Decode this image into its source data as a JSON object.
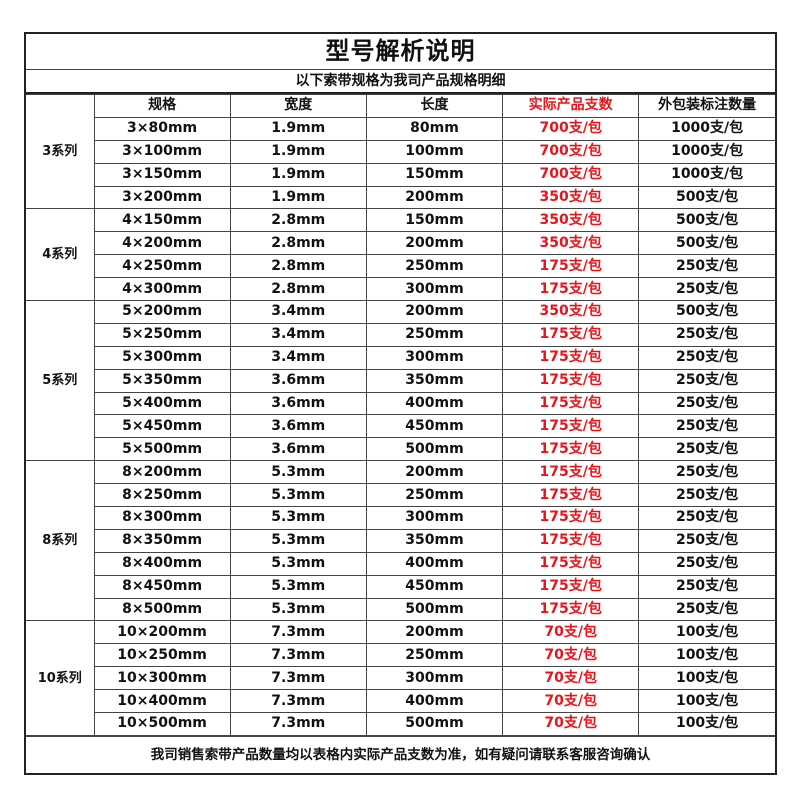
{
  "title": "型号解析说明",
  "subtitle": "以下索带规格为我司产品规格明细",
  "headers": [
    "规格",
    "宽度",
    "长度",
    "实际产品支数",
    "外包装标注数量"
  ],
  "colors": {
    "highlight": "#e8141b",
    "text": "#111111"
  },
  "groups": [
    {
      "series": "3系列",
      "rows": [
        [
          "3×80mm",
          "1.9mm",
          "80mm",
          "700支/包",
          "1000支/包"
        ],
        [
          "3×100mm",
          "1.9mm",
          "100mm",
          "700支/包",
          "1000支/包"
        ],
        [
          "3×150mm",
          "1.9mm",
          "150mm",
          "700支/包",
          "1000支/包"
        ],
        [
          "3×200mm",
          "1.9mm",
          "200mm",
          "350支/包",
          "500支/包"
        ]
      ]
    },
    {
      "series": "4系列",
      "rows": [
        [
          "4×150mm",
          "2.8mm",
          "150mm",
          "350支/包",
          "500支/包"
        ],
        [
          "4×200mm",
          "2.8mm",
          "200mm",
          "350支/包",
          "500支/包"
        ],
        [
          "4×250mm",
          "2.8mm",
          "250mm",
          "175支/包",
          "250支/包"
        ],
        [
          "4×300mm",
          "2.8mm",
          "300mm",
          "175支/包",
          "250支/包"
        ]
      ]
    },
    {
      "series": "5系列",
      "rows": [
        [
          "5×200mm",
          "3.4mm",
          "200mm",
          "350支/包",
          "500支/包"
        ],
        [
          "5×250mm",
          "3.4mm",
          "250mm",
          "175支/包",
          "250支/包"
        ],
        [
          "5×300mm",
          "3.4mm",
          "300mm",
          "175支/包",
          "250支/包"
        ],
        [
          "5×350mm",
          "3.6mm",
          "350mm",
          "175支/包",
          "250支/包"
        ],
        [
          "5×400mm",
          "3.6mm",
          "400mm",
          "175支/包",
          "250支/包"
        ],
        [
          "5×450mm",
          "3.6mm",
          "450mm",
          "175支/包",
          "250支/包"
        ],
        [
          "5×500mm",
          "3.6mm",
          "500mm",
          "175支/包",
          "250支/包"
        ]
      ]
    },
    {
      "series": "8系列",
      "rows": [
        [
          "8×200mm",
          "5.3mm",
          "200mm",
          "175支/包",
          "250支/包"
        ],
        [
          "8×250mm",
          "5.3mm",
          "250mm",
          "175支/包",
          "250支/包"
        ],
        [
          "8×300mm",
          "5.3mm",
          "300mm",
          "175支/包",
          "250支/包"
        ],
        [
          "8×350mm",
          "5.3mm",
          "350mm",
          "175支/包",
          "250支/包"
        ],
        [
          "8×400mm",
          "5.3mm",
          "400mm",
          "175支/包",
          "250支/包"
        ],
        [
          "8×450mm",
          "5.3mm",
          "450mm",
          "175支/包",
          "250支/包"
        ],
        [
          "8×500mm",
          "5.3mm",
          "500mm",
          "175支/包",
          "250支/包"
        ]
      ]
    },
    {
      "series": "10系列",
      "rows": [
        [
          "10×200mm",
          "7.3mm",
          "200mm",
          "70支/包",
          "100支/包"
        ],
        [
          "10×250mm",
          "7.3mm",
          "250mm",
          "70支/包",
          "100支/包"
        ],
        [
          "10×300mm",
          "7.3mm",
          "300mm",
          "70支/包",
          "100支/包"
        ],
        [
          "10×400mm",
          "7.3mm",
          "400mm",
          "70支/包",
          "100支/包"
        ],
        [
          "10×500mm",
          "7.3mm",
          "500mm",
          "70支/包",
          "100支/包"
        ]
      ]
    }
  ],
  "footer": "我司销售索带产品数量均以表格内实际产品支数为准，如有疑问请联系客服咨询确认"
}
